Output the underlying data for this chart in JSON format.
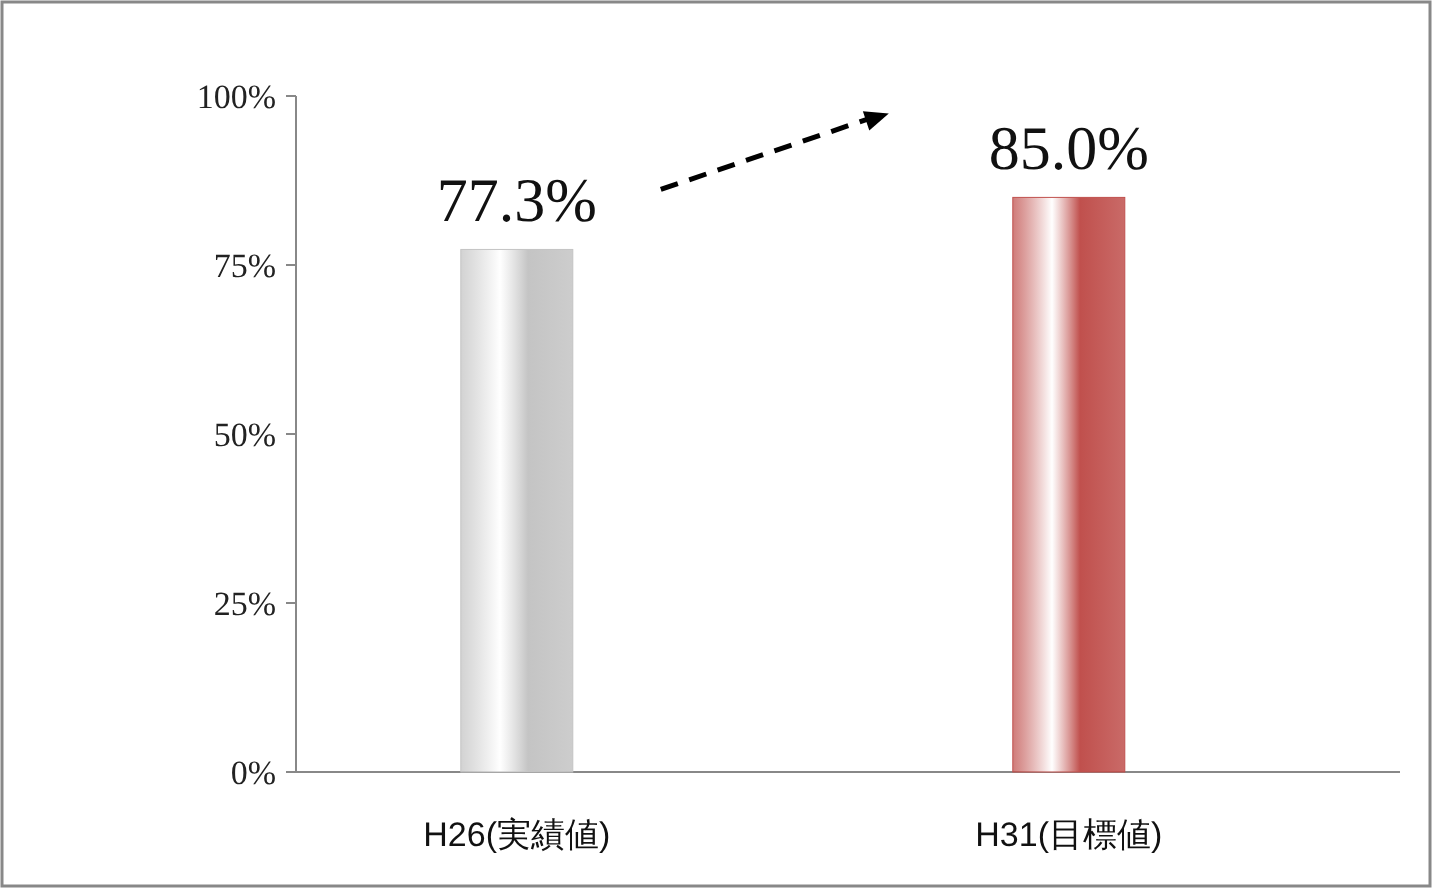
{
  "chart_data": {
    "type": "bar",
    "categories": [
      "H26(実績値)",
      "H31(目標値)"
    ],
    "values": [
      77.3,
      85.0
    ],
    "colors": [
      "#c4c4c4",
      "#c0504d"
    ],
    "value_labels": [
      "77.3%",
      "85.0%"
    ],
    "ylim": [
      0,
      100
    ],
    "yticks": [
      {
        "value": 0,
        "label": "0%"
      },
      {
        "value": 25,
        "label": "25%"
      },
      {
        "value": 50,
        "label": "50%"
      },
      {
        "value": 75,
        "label": "75%"
      },
      {
        "value": 100,
        "label": "100%"
      }
    ]
  }
}
